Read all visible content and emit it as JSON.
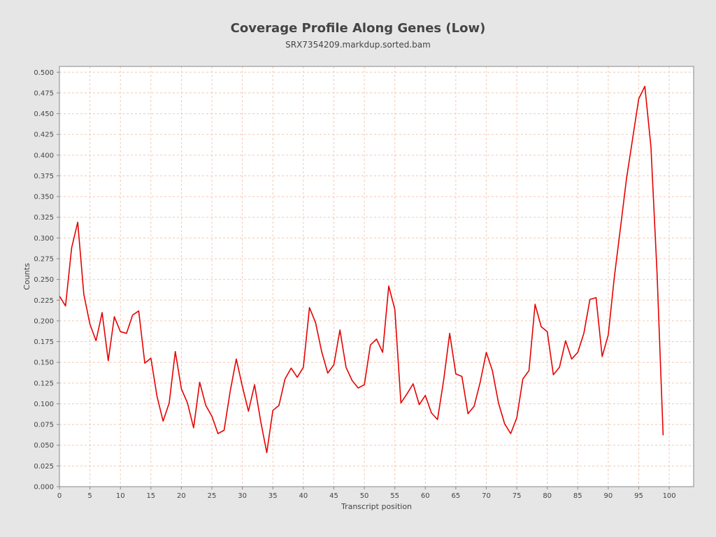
{
  "chart_data": {
    "type": "line",
    "title": "Coverage Profile Along Genes (Low)",
    "subtitle": "SRX7354209.markdup.sorted.bam",
    "xlabel": "Transcript position",
    "ylabel": "Counts",
    "xlim": [
      0,
      104
    ],
    "ylim": [
      0,
      0.507
    ],
    "xticks": [
      "0",
      "5",
      "10",
      "15",
      "20",
      "25",
      "30",
      "35",
      "40",
      "45",
      "50",
      "55",
      "60",
      "65",
      "70",
      "75",
      "80",
      "85",
      "90",
      "95",
      "100"
    ],
    "yticks": [
      "0.000",
      "0.025",
      "0.050",
      "0.075",
      "0.100",
      "0.125",
      "0.150",
      "0.175",
      "0.200",
      "0.225",
      "0.250",
      "0.275",
      "0.300",
      "0.325",
      "0.350",
      "0.375",
      "0.400",
      "0.425",
      "0.450",
      "0.475",
      "0.500"
    ],
    "grid": true,
    "legend": "none",
    "colors": {
      "series": "#e60000",
      "grid": "#f4c8b0",
      "plot_bg": "#ffffff",
      "page_bg": "#e6e6e6",
      "text": "#444444"
    },
    "series": [
      {
        "x": [
          0,
          1,
          2,
          3,
          4,
          5,
          6,
          7,
          8,
          9,
          10,
          11,
          12,
          13,
          14,
          15,
          16,
          17,
          18,
          19,
          20,
          21,
          22,
          23,
          24,
          25,
          26,
          27,
          28,
          29,
          30,
          31,
          32,
          33,
          34,
          35,
          36,
          37,
          38,
          39,
          40,
          41,
          42,
          43,
          44,
          45,
          46,
          47,
          48,
          49,
          50,
          51,
          52,
          53,
          54,
          55,
          56,
          57,
          58,
          59,
          60,
          61,
          62,
          63,
          64,
          65,
          66,
          67,
          68,
          69,
          70,
          71,
          72,
          73,
          74,
          75,
          76,
          77,
          78,
          79,
          80,
          81,
          82,
          83,
          84,
          85,
          86,
          87,
          88,
          89,
          90,
          91,
          92,
          93,
          94,
          95,
          96,
          97,
          98,
          99
        ],
        "values": [
          0.23,
          0.218,
          0.288,
          0.319,
          0.232,
          0.196,
          0.176,
          0.21,
          0.152,
          0.205,
          0.187,
          0.185,
          0.207,
          0.212,
          0.149,
          0.155,
          0.109,
          0.079,
          0.101,
          0.163,
          0.118,
          0.101,
          0.071,
          0.126,
          0.098,
          0.085,
          0.064,
          0.068,
          0.115,
          0.154,
          0.121,
          0.091,
          0.123,
          0.079,
          0.041,
          0.092,
          0.098,
          0.13,
          0.143,
          0.132,
          0.144,
          0.216,
          0.198,
          0.163,
          0.137,
          0.147,
          0.189,
          0.144,
          0.128,
          0.119,
          0.123,
          0.171,
          0.178,
          0.162,
          0.242,
          0.214,
          0.101,
          0.112,
          0.124,
          0.099,
          0.11,
          0.089,
          0.081,
          0.128,
          0.185,
          0.136,
          0.133,
          0.088,
          0.097,
          0.126,
          0.162,
          0.14,
          0.101,
          0.076,
          0.064,
          0.083,
          0.13,
          0.14,
          0.22,
          0.193,
          0.187,
          0.135,
          0.144,
          0.176,
          0.154,
          0.162,
          0.185,
          0.226,
          0.228,
          0.157,
          0.183,
          0.253,
          0.312,
          0.372,
          0.42,
          0.468,
          0.483,
          0.41,
          0.258,
          0.062
        ]
      }
    ]
  }
}
